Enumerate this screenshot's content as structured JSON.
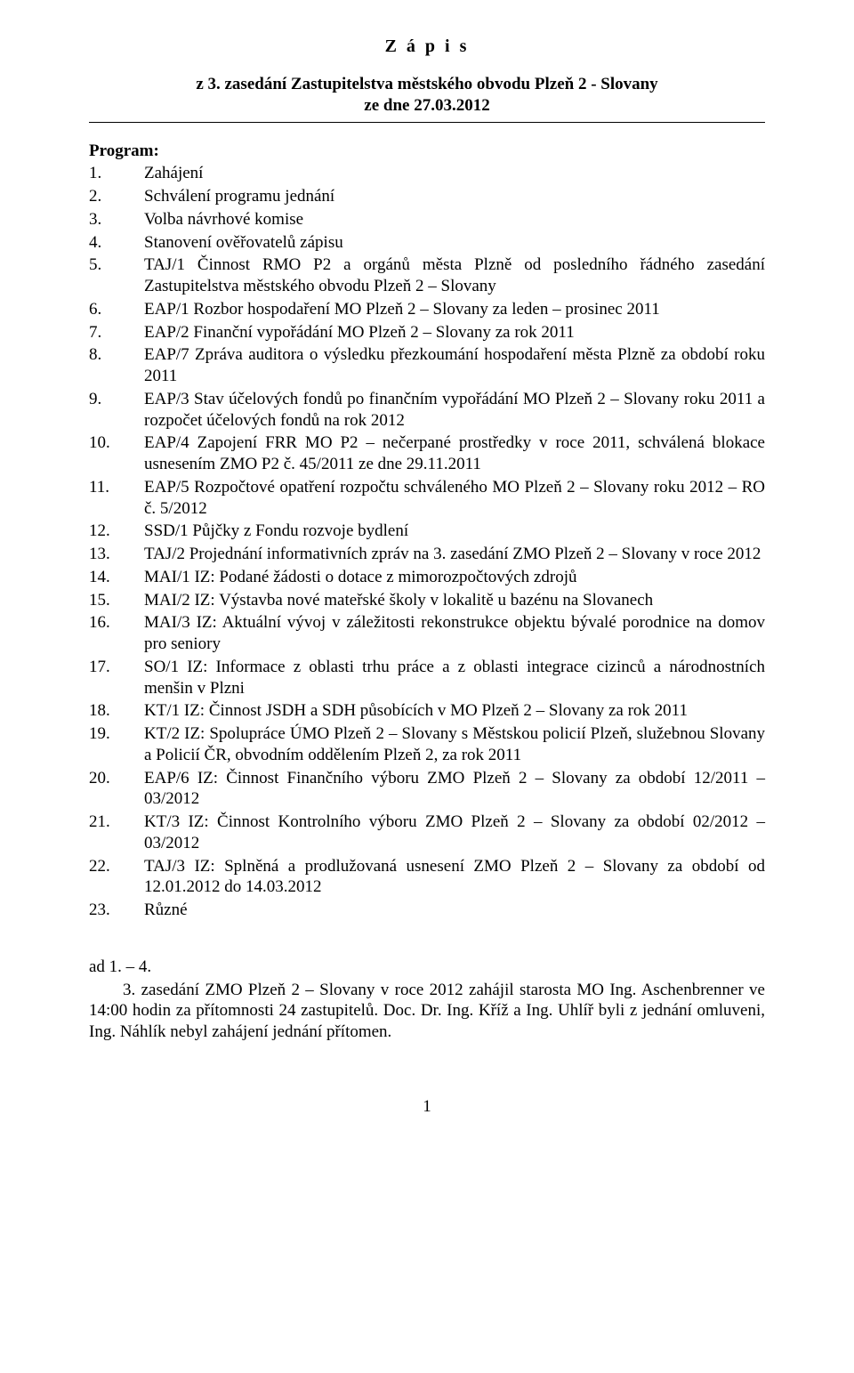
{
  "title": "Z á p i s",
  "subtitle_line1": "z 3. zasedání Zastupitelstva městského obvodu Plzeň 2 - Slovany",
  "subtitle_line2": "ze dne 27.03.2012",
  "program_label": "Program:",
  "items": [
    {
      "num": "1.",
      "code": "",
      "desc": "Zahájení"
    },
    {
      "num": "2.",
      "code": "",
      "desc": "Schválení programu jednání"
    },
    {
      "num": "3.",
      "code": "",
      "desc": "Volba návrhové komise"
    },
    {
      "num": "4.",
      "code": "",
      "desc": "Stanovení ověřovatelů zápisu"
    },
    {
      "num": "5.",
      "code": "TAJ/1",
      "desc": "Činnost RMO P2 a orgánů města Plzně od posledního řádného zasedání Zastupitelstva městského obvodu Plzeň 2 – Slovany"
    },
    {
      "num": "6.",
      "code": "EAP/1",
      "desc": "Rozbor hospodaření MO Plzeň 2 – Slovany za leden – prosinec 2011"
    },
    {
      "num": "7.",
      "code": "EAP/2",
      "desc": "Finanční vypořádání MO Plzeň 2 – Slovany za rok 2011"
    },
    {
      "num": "8.",
      "code": "EAP/7",
      "desc": "Zpráva auditora o výsledku přezkoumání hospodaření města Plzně za období roku 2011"
    },
    {
      "num": "9.",
      "code": "EAP/3",
      "desc": "Stav účelových fondů po finančním vypořádání MO Plzeň 2 – Slovany roku 2011 a rozpočet účelových fondů na rok 2012"
    },
    {
      "num": "10.",
      "code": "EAP/4",
      "desc": "Zapojení FRR MO P2 – nečerpané prostředky v roce 2011, schválená blokace usnesením ZMO P2 č. 45/2011 ze dne 29.11.2011"
    },
    {
      "num": "11.",
      "code": "EAP/5",
      "desc": "Rozpočtové opatření rozpočtu schváleného MO Plzeň 2 – Slovany roku 2012 – RO č. 5/2012"
    },
    {
      "num": "12.",
      "code": "SSD/1",
      "desc": "Půjčky z Fondu rozvoje bydlení"
    },
    {
      "num": "13.",
      "code": "TAJ/2",
      "desc": "Projednání informativních zpráv na 3. zasedání ZMO Plzeň 2 – Slovany v roce 2012"
    },
    {
      "num": "14.",
      "code": "MAI/1",
      "desc": "IZ: Podané žádosti o dotace z mimorozpočtových zdrojů"
    },
    {
      "num": "15.",
      "code": "MAI/2",
      "desc": "IZ: Výstavba nové mateřské školy v lokalitě u bazénu na Slovanech"
    },
    {
      "num": "16.",
      "code": "MAI/3",
      "desc": "IZ: Aktuální vývoj v záležitosti rekonstrukce objektu bývalé porodnice na domov pro seniory"
    },
    {
      "num": "17.",
      "code": "SO/1",
      "desc": "IZ: Informace z oblasti trhu práce a z oblasti integrace cizinců a národnostních menšin v Plzni"
    },
    {
      "num": "18.",
      "code": "KT/1",
      "desc": "IZ: Činnost JSDH a SDH působících v MO Plzeň 2 – Slovany za rok 2011"
    },
    {
      "num": "19.",
      "code": "KT/2",
      "desc": "IZ: Spolupráce ÚMO Plzeň 2 – Slovany s Městskou policií Plzeň, služebnou Slovany a Policií ČR, obvodním oddělením Plzeň 2, za rok 2011"
    },
    {
      "num": "20.",
      "code": "EAP/6",
      "desc": "IZ: Činnost Finančního výboru ZMO Plzeň 2 – Slovany za období 12/2011 – 03/2012"
    },
    {
      "num": "21.",
      "code": "KT/3",
      "desc": "IZ: Činnost Kontrolního výboru ZMO Plzeň 2 – Slovany za období 02/2012 – 03/2012"
    },
    {
      "num": "22.",
      "code": "TAJ/3",
      "desc": "IZ: Splněná a prodlužovaná usnesení ZMO Plzeň 2 – Slovany za období od 12.01.2012 do 14.03.2012"
    },
    {
      "num": "23.",
      "code": "",
      "desc": "Různé"
    }
  ],
  "ad": {
    "label": "ad 1. – 4.",
    "body": "3. zasedání ZMO Plzeň 2 – Slovany v roce 2012 zahájil starosta MO Ing. Aschenbrenner ve 14:00 hodin za přítomnosti 24 zastupitelů. Doc. Dr. Ing. Kříž a Ing. Uhlíř byli z jednání omluveni, Ing. Náhlík nebyl zahájení jednání přítomen."
  },
  "page_number": "1"
}
